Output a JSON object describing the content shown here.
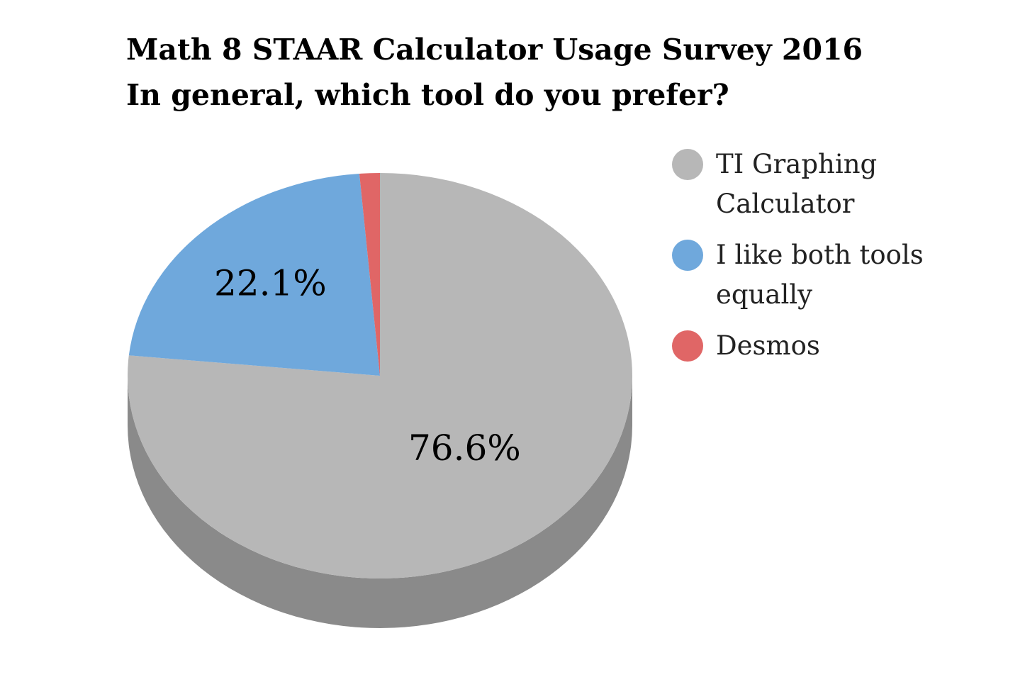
{
  "chart_data": {
    "type": "pie",
    "title": "Math 8 STAAR Calculator Usage Survey 2016",
    "subtitle": "In general, which tool do you prefer?",
    "style": "3d",
    "legend_position": "right",
    "slices": [
      {
        "label": "TI Graphing Calculator",
        "value": 76.6,
        "display": "76.6%",
        "color": "#b7b7b7",
        "side_color": "#8a8a8a"
      },
      {
        "label": "I like both tools equally",
        "value": 22.1,
        "display": "22.1%",
        "color": "#6fa8dc",
        "side_color": "#4f7ea8"
      },
      {
        "label": "Desmos",
        "value": 1.3,
        "display": "",
        "color": "#e06666",
        "side_color": "#a84a4a"
      }
    ]
  }
}
